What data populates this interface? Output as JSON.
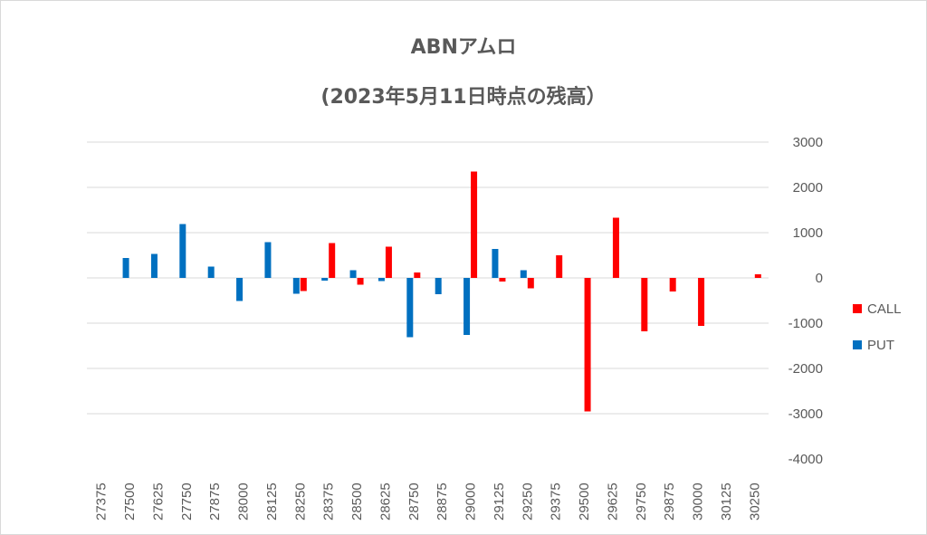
{
  "chart_data": {
    "type": "bar",
    "title": "ABNアムロ",
    "subtitle": "(2023年5月11日時点の残高）",
    "xlabel": "",
    "ylabel": "",
    "ylim": [
      -4000,
      3000
    ],
    "yticks": [
      3000,
      2000,
      1000,
      0,
      -1000,
      -2000,
      -3000,
      -4000
    ],
    "y_axis_side": "right",
    "grid": true,
    "legend_position": "right",
    "categories": [
      "27375",
      "27500",
      "27625",
      "27750",
      "27875",
      "28000",
      "28125",
      "28250",
      "28375",
      "28500",
      "28625",
      "28750",
      "28875",
      "29000",
      "29125",
      "29250",
      "29375",
      "29500",
      "29625",
      "29750",
      "29875",
      "30000",
      "30125",
      "30250"
    ],
    "series": [
      {
        "name": "CALL",
        "color": "#ff0000",
        "values": [
          0,
          0,
          0,
          0,
          0,
          0,
          0,
          -290,
          770,
          -150,
          690,
          120,
          0,
          2350,
          -80,
          -230,
          500,
          -2950,
          1330,
          -1180,
          -300,
          -1060,
          0,
          80
        ]
      },
      {
        "name": "PUT",
        "color": "#0070c0",
        "values": [
          0,
          440,
          530,
          1190,
          250,
          -510,
          790,
          -350,
          -60,
          170,
          -70,
          -1310,
          -360,
          -1260,
          640,
          170,
          0,
          0,
          0,
          0,
          0,
          0,
          0,
          0
        ]
      }
    ]
  }
}
